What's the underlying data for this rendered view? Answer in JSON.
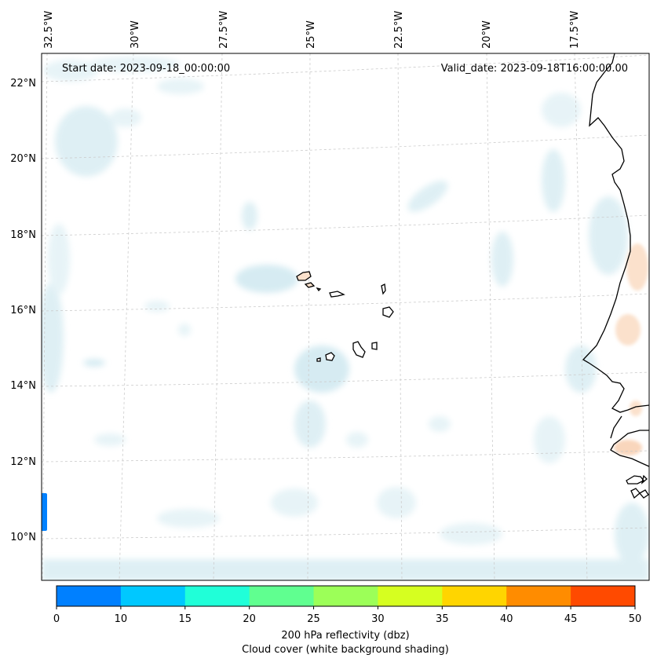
{
  "map": {
    "start_date": "Start date: 2023-09-18_00:00:00",
    "valid_date": "Valid_date: 2023-09-18T16:00:00.00",
    "lon_labels": [
      "32.5°W",
      "30°W",
      "27.5°W",
      "25°W",
      "22.5°W",
      "20°W",
      "17.5°W"
    ],
    "lat_labels": [
      "22°N",
      "20°N",
      "18°N",
      "16°N",
      "14°N",
      "12°N",
      "10°N"
    ],
    "colors": {
      "cloud": "#d9edf3",
      "cloud_dark": "#c6e3ec",
      "warm": "#fbe1cc",
      "coast": "#000000",
      "grid": "#cccccc"
    }
  },
  "colorbar": {
    "ticks": [
      "0",
      "10",
      "15",
      "20",
      "25",
      "30",
      "35",
      "40",
      "45",
      "50"
    ],
    "colors": [
      "#0080ff",
      "#00c8ff",
      "#20ffd8",
      "#60ff90",
      "#9cff58",
      "#d6ff20",
      "#ffd500",
      "#ff8c00",
      "#ff4a00"
    ],
    "label_line1": "200 hPa reflectivity (dbz)",
    "label_line2": "Cloud cover (white background shading)"
  }
}
